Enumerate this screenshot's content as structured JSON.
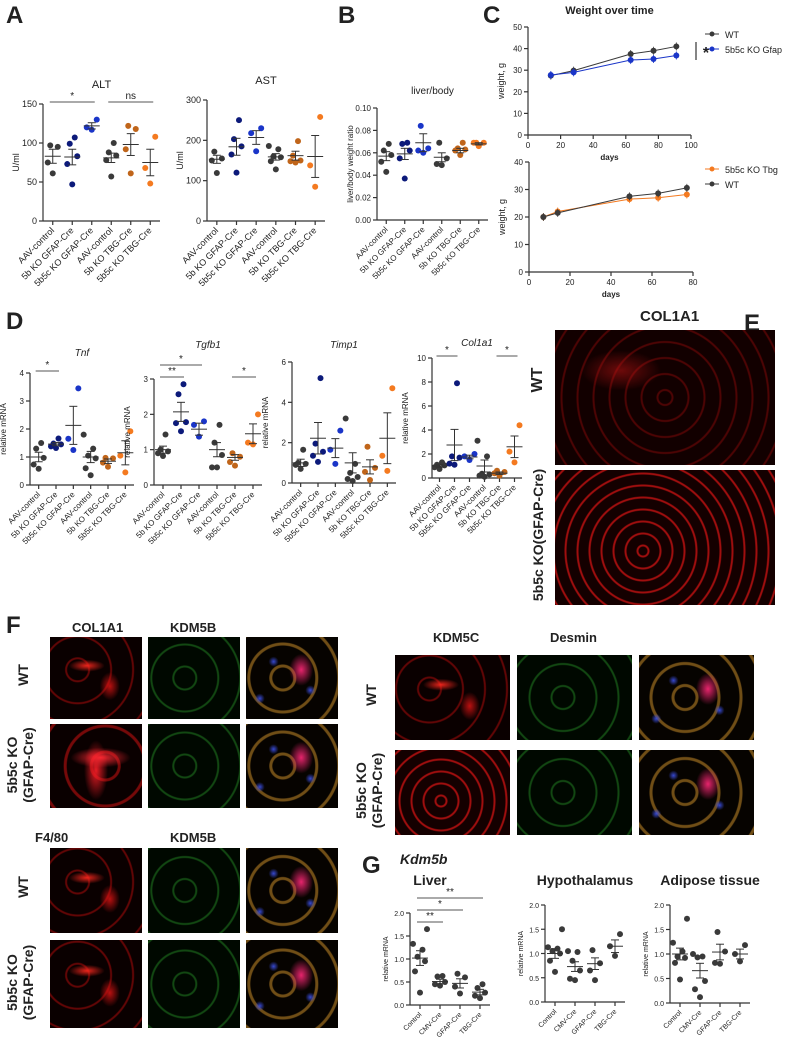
{
  "panels": {
    "A": "A",
    "B": "B",
    "C": "C",
    "D": "D",
    "E": "E",
    "F": "F",
    "G": "G",
    "E_header": "COL1A1",
    "E_row1": "WT",
    "E_row2": "5b5c KO(GFAP-Cre)",
    "F1_headers": [
      "COL1A1",
      "KDM5B"
    ],
    "F2_headers": [
      "KDM5C",
      "Desmin"
    ],
    "F3_headers": [
      "F4/80",
      "KDM5B"
    ],
    "F_row_wt": "WT",
    "F_row_ko": [
      "5b5c KO",
      "(GFAP-Cre)"
    ],
    "G_gene": "Kdm5b"
  },
  "colors": {
    "wt": "#3a3a3a",
    "navy": "#0c1a7a",
    "blue": "#1a35c8",
    "brown": "#c0651a",
    "orange": "#f47a20"
  },
  "chart_data": [
    {
      "type": "scatter",
      "title": "ALT",
      "ylabel": "U/ml",
      "ylim": [
        0,
        150
      ],
      "yticks": [
        "0",
        "50",
        "100",
        "150"
      ],
      "categories": [
        "AAV-control",
        "5b KO GFAP-Cre",
        "5b5c KO GFAP-Cre",
        "AAV-control",
        "5b KO TBG-Cre",
        "5b5c KO TBG-Cre"
      ],
      "colors": [
        "wt",
        "navy",
        "blue",
        "wt",
        "brown",
        "orange"
      ],
      "groups": [
        [
          61,
          75,
          95,
          97
        ],
        [
          47,
          73,
          83,
          99,
          107
        ],
        [
          117,
          120,
          130
        ],
        [
          57,
          78,
          84,
          88,
          100
        ],
        [
          61,
          92,
          118,
          122
        ],
        [
          48,
          68,
          108
        ]
      ],
      "mean": [
        83,
        82,
        122,
        81,
        98,
        75
      ],
      "sem": [
        9,
        10,
        4,
        6,
        14,
        17
      ],
      "significance": [
        {
          "from": 0,
          "to": 2,
          "label": "*"
        },
        {
          "from": 3,
          "to": 5,
          "label": "ns"
        }
      ]
    },
    {
      "type": "scatter",
      "title": "AST",
      "ylabel": "U/ml",
      "ylim": [
        0,
        300
      ],
      "yticks": [
        "0",
        "100",
        "200",
        "300"
      ],
      "categories": [
        "AAV-control",
        "5b KO GFAP-Cre",
        "5b5c KO GFAP-Cre",
        "AAV-control",
        "5b KO TBG-Cre",
        "5b5c KO TBG-Cre"
      ],
      "colors": [
        "wt",
        "navy",
        "blue",
        "wt",
        "brown",
        "orange"
      ],
      "groups": [
        [
          119,
          150,
          155,
          172
        ],
        [
          120,
          165,
          185,
          203,
          250
        ],
        [
          173,
          218,
          230
        ],
        [
          128,
          148,
          158,
          160,
          178,
          186
        ],
        [
          145,
          148,
          150,
          162,
          198
        ],
        [
          85,
          138,
          258
        ]
      ],
      "mean": [
        153,
        184,
        207,
        159,
        162,
        160
      ],
      "sem": [
        10,
        21,
        17,
        8,
        11,
        52
      ],
      "significance": []
    },
    {
      "type": "scatter",
      "title": "liver/body",
      "ylabel": "liver/body weight ratio",
      "ylim": [
        0,
        0.1
      ],
      "yticks": [
        "0.00",
        "0.02",
        "0.04",
        "0.06",
        "0.08",
        "0.10"
      ],
      "categories": [
        "AAV-control",
        "5b KO GFAP-Cre",
        "5b5c KO GFAP-Cre",
        "AAV-control",
        "5b KO TBG-Cre",
        "5b5c KO TBG-Cre"
      ],
      "colors": [
        "wt",
        "navy",
        "blue",
        "wt",
        "brown",
        "orange"
      ],
      "groups": [
        [
          0.043,
          0.052,
          0.058,
          0.062,
          0.068
        ],
        [
          0.037,
          0.055,
          0.062,
          0.068,
          0.069
        ],
        [
          0.06,
          0.062,
          0.064,
          0.084
        ],
        [
          0.049,
          0.05,
          0.055,
          0.069
        ],
        [
          0.058,
          0.062,
          0.063,
          0.064,
          0.069
        ],
        [
          0.066,
          0.069,
          0.069,
          0.069
        ]
      ],
      "mean": [
        0.057,
        0.059,
        0.069,
        0.056,
        0.062,
        0.068
      ],
      "sem": [
        0.004,
        0.005,
        0.008,
        0.004,
        0.002,
        0.001
      ],
      "significance": []
    },
    {
      "type": "line",
      "title": "Weight over time",
      "xlabel": "days",
      "ylabel": "weight, g",
      "xlim": [
        0,
        100
      ],
      "ylim": [
        0,
        50
      ],
      "xticks": [
        "0",
        "20",
        "40",
        "60",
        "80",
        "100"
      ],
      "yticks": [
        "0",
        "10",
        "20",
        "30",
        "40",
        "50"
      ],
      "annotation": "*",
      "series": [
        {
          "name": "WT",
          "color": "wt",
          "x": [
            14,
            28,
            63,
            77,
            91
          ],
          "y": [
            27.5,
            29.8,
            37.5,
            39,
            41
          ]
        },
        {
          "name": "5b5c KO Gfap",
          "color": "blue",
          "x": [
            14,
            28,
            63,
            77,
            91
          ],
          "y": [
            27.8,
            29,
            34.7,
            35.2,
            36.8
          ]
        }
      ]
    },
    {
      "type": "line",
      "title": "",
      "xlabel": "days",
      "ylabel": "weight, g",
      "xlim": [
        0,
        80
      ],
      "ylim": [
        0,
        40
      ],
      "xticks": [
        "0",
        "20",
        "40",
        "60",
        "80"
      ],
      "yticks": [
        "0",
        "10",
        "20",
        "30",
        "40"
      ],
      "series": [
        {
          "name": "5b5c KO Tbg",
          "color": "orange",
          "x": [
            7,
            14,
            49,
            63,
            77
          ],
          "y": [
            20,
            22,
            26.5,
            27,
            28.2
          ]
        },
        {
          "name": "WT",
          "color": "wt",
          "x": [
            7,
            14,
            49,
            63,
            77
          ],
          "y": [
            20,
            21.5,
            27.5,
            28.6,
            30.6
          ]
        }
      ]
    },
    {
      "type": "scatter",
      "title": "Tnf",
      "ylabel": "relative mRNA",
      "ylim": [
        0,
        4
      ],
      "yticks": [
        "0",
        "1",
        "2",
        "3",
        "4"
      ],
      "categories": [
        "AAV-control",
        "5b KO GFAP-Cre",
        "5b5c KO GFAP-Cre",
        "AAV-control",
        "5b KO TBG-Cre",
        "5b5c KO TBG-Cre"
      ],
      "colors": [
        "wt",
        "navy",
        "blue",
        "wt",
        "brown",
        "orange"
      ],
      "groups": [
        [
          0.58,
          0.73,
          0.97,
          1.3,
          1.5
        ],
        [
          1.32,
          1.38,
          1.45,
          1.48,
          1.66
        ],
        [
          1.25,
          1.65,
          3.45
        ],
        [
          0.35,
          0.6,
          0.95,
          1.05,
          1.3,
          1.8
        ],
        [
          0.65,
          0.8,
          0.95,
          0.97
        ],
        [
          0.45,
          1.05,
          1.92
        ]
      ],
      "mean": [
        1.0,
        1.46,
        2.13,
        1.0,
        0.85,
        1.15
      ],
      "sem": [
        0.17,
        0.06,
        0.68,
        0.2,
        0.08,
        0.43
      ],
      "significance": [
        {
          "from": 0,
          "to": 1,
          "label": "*"
        }
      ]
    },
    {
      "type": "scatter",
      "title": "Tgfb1",
      "ylabel": "relative mRNA",
      "ylim": [
        0,
        3
      ],
      "yticks": [
        "0",
        "1",
        "2",
        "3"
      ],
      "categories": [
        "AAV-control",
        "5b KO GFAP-Cre",
        "5b5c KO GFAP-Cre",
        "AAV-control",
        "5b KO TBG-Cre",
        "5b5c KO TBG-Cre"
      ],
      "colors": [
        "wt",
        "navy",
        "blue",
        "wt",
        "brown",
        "orange"
      ],
      "groups": [
        [
          0.82,
          0.9,
          0.95,
          1.0,
          1.43
        ],
        [
          1.52,
          1.75,
          1.78,
          2.57,
          2.85
        ],
        [
          1.37,
          1.7,
          1.8
        ],
        [
          0.5,
          0.5,
          0.85,
          1.2,
          1.7
        ],
        [
          0.55,
          0.65,
          0.8,
          0.9
        ],
        [
          1.15,
          1.2,
          2.0
        ]
      ],
      "mean": [
        1.0,
        2.07,
        1.58,
        1.0,
        0.78,
        1.45
      ],
      "sem": [
        0.1,
        0.27,
        0.17,
        0.2,
        0.08,
        0.28
      ],
      "significance": [
        {
          "from": 0,
          "to": 1,
          "label": "**"
        },
        {
          "from": 0,
          "to": 2,
          "label": "*"
        },
        {
          "from": 4,
          "to": 5,
          "label": "*"
        }
      ]
    },
    {
      "type": "scatter",
      "title": "Timp1",
      "ylabel": "relative mRNA",
      "ylim": [
        0,
        6
      ],
      "yticks": [
        "0",
        "2",
        "4",
        "6"
      ],
      "categories": [
        "AAV-control",
        "5b KO GFAP-Cre",
        "5b5c KO GFAP-Cre",
        "AAV-control",
        "5b KO TBG-Cre",
        "5b5c KO TBG-Cre"
      ],
      "colors": [
        "wt",
        "navy",
        "blue",
        "wt",
        "brown",
        "orange"
      ],
      "groups": [
        [
          0.7,
          0.9,
          0.95,
          1.0,
          1.65
        ],
        [
          1.05,
          1.35,
          1.55,
          1.95,
          5.2
        ],
        [
          0.95,
          1.65,
          2.6
        ],
        [
          0.1,
          0.2,
          0.3,
          0.5,
          0.95,
          3.2
        ],
        [
          0.15,
          0.55,
          0.75,
          1.8
        ],
        [
          0.6,
          1.35,
          4.7
        ]
      ],
      "mean": [
        1.0,
        2.22,
        1.73,
        1.0,
        0.8,
        2.22
      ],
      "sem": [
        0.18,
        0.78,
        0.47,
        0.5,
        0.35,
        1.26
      ],
      "significance": []
    },
    {
      "type": "scatter",
      "title": "Col1a1",
      "ylabel": "relative mRNA",
      "ylim": [
        0,
        10
      ],
      "yticks": [
        "0",
        "2",
        "4",
        "6",
        "8",
        "10"
      ],
      "categories": [
        "AAV-control",
        "5b KO GFAP-Cre",
        "5b5c KO GFAP-Cre",
        "AAV-control",
        "5b KO TBG-Cre",
        "5b5c KO TBG-Cre"
      ],
      "colors": [
        "wt",
        "navy",
        "blue",
        "wt",
        "brown",
        "orange"
      ],
      "groups": [
        [
          0.75,
          0.9,
          1.05,
          1.1,
          1.3
        ],
        [
          1.1,
          1.2,
          1.7,
          1.8,
          7.9
        ],
        [
          1.5,
          1.8,
          2.0
        ],
        [
          0.1,
          0.2,
          0.3,
          0.35,
          1.8,
          3.1
        ],
        [
          0.2,
          0.4,
          0.5,
          0.6
        ],
        [
          1.3,
          2.2,
          4.4
        ]
      ],
      "mean": [
        1.0,
        2.75,
        1.75,
        1.0,
        0.4,
        2.6
      ],
      "sem": [
        0.1,
        1.3,
        0.15,
        0.5,
        0.1,
        0.9
      ],
      "significance": [
        {
          "from": 0,
          "to": 1,
          "label": "*"
        },
        {
          "from": 4,
          "to": 5,
          "label": "*"
        }
      ]
    },
    {
      "type": "scatter",
      "title": "Liver",
      "ylabel": "relative mRNA",
      "ylim": [
        0,
        2
      ],
      "yticks": [
        "0.0",
        "0.5",
        "1.0",
        "1.5",
        "2.0"
      ],
      "categories": [
        "Control",
        "CMV-Cre",
        "GFAP-Cre",
        "TBG-Cre"
      ],
      "colors": [
        "wt",
        "wt",
        "wt",
        "wt"
      ],
      "groups": [
        [
          0.27,
          0.73,
          0.95,
          1.05,
          1.2,
          1.33,
          1.65
        ],
        [
          0.42,
          0.45,
          0.5,
          0.62,
          0.63
        ],
        [
          0.25,
          0.4,
          0.6,
          0.68
        ],
        [
          0.15,
          0.2,
          0.27,
          0.37,
          0.45
        ]
      ],
      "mean": [
        1.02,
        0.51,
        0.47,
        0.28
      ],
      "sem": [
        0.16,
        0.05,
        0.1,
        0.06
      ],
      "significance": [
        {
          "from": 0,
          "to": 1,
          "label": "**"
        },
        {
          "from": 0,
          "to": 2,
          "label": "*"
        },
        {
          "from": 0,
          "to": 3,
          "label": "**"
        }
      ]
    },
    {
      "type": "scatter",
      "title": "Hypothalamus",
      "ylabel": "relative mRNA",
      "ylim": [
        0,
        2
      ],
      "yticks": [
        "0.0",
        "0.5",
        "1.0",
        "1.5",
        "2.0"
      ],
      "categories": [
        "Control",
        "CMV-Cre",
        "GFAP-Cre",
        "TBG-Cre"
      ],
      "colors": [
        "wt",
        "wt",
        "wt",
        "wt"
      ],
      "groups": [
        [
          0.62,
          0.85,
          1.0,
          1.05,
          1.1,
          1.13,
          1.5
        ],
        [
          0.45,
          0.48,
          0.65,
          0.85,
          1.03,
          1.05
        ],
        [
          0.45,
          0.65,
          0.8,
          1.07
        ],
        [
          0.95,
          1.15,
          1.4
        ]
      ],
      "mean": [
        1.0,
        0.73,
        0.79,
        1.15
      ],
      "sem": [
        0.1,
        0.1,
        0.12,
        0.13
      ],
      "significance": []
    },
    {
      "type": "scatter",
      "title": "Adipose tissue",
      "ylabel": "relative mRNA",
      "ylim": [
        0,
        2
      ],
      "yticks": [
        "0.0",
        "0.5",
        "1.0",
        "1.5",
        "2.0"
      ],
      "categories": [
        "Control",
        "CMV-Cre",
        "GFAP-Cre",
        "TBG-Cre"
      ],
      "colors": [
        "wt",
        "wt",
        "wt",
        "wt"
      ],
      "groups": [
        [
          0.48,
          0.82,
          0.92,
          0.95,
          1.05,
          1.23,
          1.72
        ],
        [
          0.12,
          0.28,
          0.45,
          0.93,
          0.95,
          1.0
        ],
        [
          0.8,
          0.82,
          1.05,
          1.45
        ],
        [
          0.85,
          1.0,
          1.18
        ]
      ],
      "mean": [
        1.0,
        0.66,
        1.04,
        1.0
      ],
      "sem": [
        0.12,
        0.15,
        0.16,
        0.1
      ],
      "significance": []
    }
  ]
}
